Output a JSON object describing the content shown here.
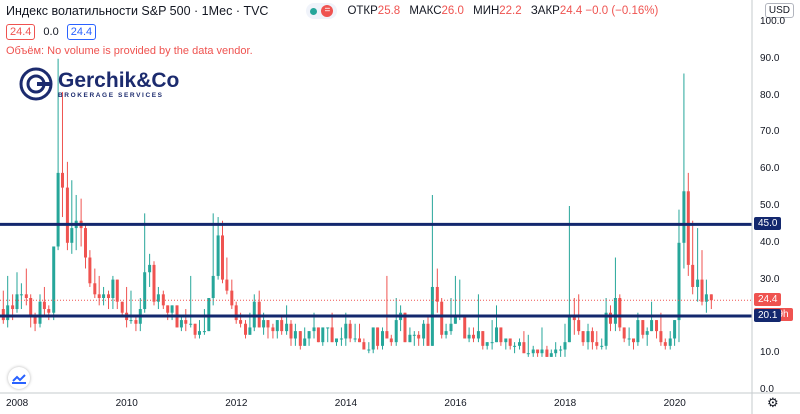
{
  "header": {
    "symbol_title": "Индекс волатильности S&P 500 · 1Мес · TVC",
    "ohlc": [
      {
        "key": "ОТКР",
        "value": "25.8"
      },
      {
        "key": "МАКС",
        "value": "26.0"
      },
      {
        "key": "МИН",
        "value": "22.2"
      },
      {
        "key": "ЗАКР",
        "value": "24.4 −0.0 (−0.16%)"
      }
    ],
    "badge_eq": "="
  },
  "legend_row": {
    "sell": "24.4",
    "spread": "0.0",
    "buy": "24.4"
  },
  "message": {
    "prefix": "Объём:",
    "text": "No volume is provided by the data vendor."
  },
  "logo": {
    "name": "Gerchik&Co",
    "subtitle": "BROKERAGE SERVICES"
  },
  "currency": "USD",
  "price_tags": {
    "last": "24.4",
    "countdown": "27d 9h",
    "level_45": "45.0",
    "level_20": "20.1"
  },
  "colors": {
    "up": "#26a69a",
    "down": "#ef5350",
    "level_line": "#13286e",
    "last_price": "#ef5350"
  },
  "chart_data": {
    "type": "candlestick",
    "y_axis_labels": [
      "0.0",
      "10.0",
      "20.0",
      "30.0",
      "40.0",
      "50.0",
      "60.0",
      "70.0",
      "80.0",
      "90.0",
      "100.0"
    ],
    "x_axis_labels": [
      "2008",
      "2010",
      "2012",
      "2014",
      "2016",
      "2018",
      "2020"
    ],
    "ylim": [
      0,
      100
    ],
    "horizontal_levels": [
      45.0,
      20.1
    ],
    "last_price": 24.4,
    "candles": [
      {
        "t": 2007.5,
        "o": 20,
        "h": 31,
        "l": 15,
        "c": 24
      },
      {
        "t": 2007.58,
        "o": 24,
        "h": 33,
        "l": 16,
        "c": 18
      },
      {
        "t": 2007.67,
        "o": 18,
        "h": 24,
        "l": 16,
        "c": 22
      },
      {
        "t": 2007.75,
        "o": 22,
        "h": 27,
        "l": 18,
        "c": 19
      },
      {
        "t": 2007.83,
        "o": 19,
        "h": 31,
        "l": 17,
        "c": 23
      },
      {
        "t": 2007.92,
        "o": 23,
        "h": 26,
        "l": 19,
        "c": 22
      },
      {
        "t": 2008.0,
        "o": 22,
        "h": 32,
        "l": 21,
        "c": 26
      },
      {
        "t": 2008.08,
        "o": 26,
        "h": 29,
        "l": 22,
        "c": 26
      },
      {
        "t": 2008.17,
        "o": 26,
        "h": 33,
        "l": 23,
        "c": 25
      },
      {
        "t": 2008.25,
        "o": 25,
        "h": 26,
        "l": 17,
        "c": 20
      },
      {
        "t": 2008.33,
        "o": 20,
        "h": 21,
        "l": 16,
        "c": 18
      },
      {
        "t": 2008.42,
        "o": 18,
        "h": 26,
        "l": 17,
        "c": 24
      },
      {
        "t": 2008.5,
        "o": 24,
        "h": 28,
        "l": 20,
        "c": 22
      },
      {
        "t": 2008.58,
        "o": 22,
        "h": 23,
        "l": 19,
        "c": 21
      },
      {
        "t": 2008.67,
        "o": 21,
        "h": 39,
        "l": 19,
        "c": 39
      },
      {
        "t": 2008.75,
        "o": 39,
        "h": 90,
        "l": 38,
        "c": 59
      },
      {
        "t": 2008.83,
        "o": 59,
        "h": 81,
        "l": 47,
        "c": 55
      },
      {
        "t": 2008.92,
        "o": 55,
        "h": 62,
        "l": 38,
        "c": 40
      },
      {
        "t": 2009.0,
        "o": 40,
        "h": 57,
        "l": 37,
        "c": 44
      },
      {
        "t": 2009.08,
        "o": 44,
        "h": 53,
        "l": 38,
        "c": 46
      },
      {
        "t": 2009.17,
        "o": 46,
        "h": 52,
        "l": 39,
        "c": 44
      },
      {
        "t": 2009.25,
        "o": 44,
        "h": 45,
        "l": 33,
        "c": 36
      },
      {
        "t": 2009.33,
        "o": 36,
        "h": 38,
        "l": 28,
        "c": 29
      },
      {
        "t": 2009.42,
        "o": 29,
        "h": 33,
        "l": 25,
        "c": 26
      },
      {
        "t": 2009.5,
        "o": 26,
        "h": 31,
        "l": 23,
        "c": 25
      },
      {
        "t": 2009.58,
        "o": 25,
        "h": 28,
        "l": 23,
        "c": 26
      },
      {
        "t": 2009.67,
        "o": 26,
        "h": 27,
        "l": 22,
        "c": 25
      },
      {
        "t": 2009.75,
        "o": 25,
        "h": 31,
        "l": 22,
        "c": 30
      },
      {
        "t": 2009.83,
        "o": 30,
        "h": 30,
        "l": 22,
        "c": 24
      },
      {
        "t": 2009.92,
        "o": 24,
        "h": 24,
        "l": 20,
        "c": 21
      },
      {
        "t": 2010.0,
        "o": 21,
        "h": 28,
        "l": 17,
        "c": 19
      },
      {
        "t": 2010.08,
        "o": 19,
        "h": 27,
        "l": 18,
        "c": 19
      },
      {
        "t": 2010.17,
        "o": 19,
        "h": 20,
        "l": 16,
        "c": 18
      },
      {
        "t": 2010.25,
        "o": 18,
        "h": 25,
        "l": 16,
        "c": 22
      },
      {
        "t": 2010.33,
        "o": 22,
        "h": 48,
        "l": 21,
        "c": 32
      },
      {
        "t": 2010.42,
        "o": 32,
        "h": 37,
        "l": 28,
        "c": 34
      },
      {
        "t": 2010.5,
        "o": 34,
        "h": 35,
        "l": 23,
        "c": 24
      },
      {
        "t": 2010.58,
        "o": 24,
        "h": 28,
        "l": 22,
        "c": 26
      },
      {
        "t": 2010.67,
        "o": 26,
        "h": 27,
        "l": 22,
        "c": 23
      },
      {
        "t": 2010.75,
        "o": 23,
        "h": 23,
        "l": 19,
        "c": 21
      },
      {
        "t": 2010.83,
        "o": 21,
        "h": 23,
        "l": 19,
        "c": 23
      },
      {
        "t": 2010.92,
        "o": 23,
        "h": 23,
        "l": 17,
        "c": 17
      },
      {
        "t": 2011.0,
        "o": 17,
        "h": 20,
        "l": 16,
        "c": 19
      },
      {
        "t": 2011.08,
        "o": 19,
        "h": 22,
        "l": 16,
        "c": 18
      },
      {
        "t": 2011.17,
        "o": 18,
        "h": 31,
        "l": 17,
        "c": 18
      },
      {
        "t": 2011.25,
        "o": 18,
        "h": 18,
        "l": 14,
        "c": 15
      },
      {
        "t": 2011.33,
        "o": 15,
        "h": 19,
        "l": 14,
        "c": 16
      },
      {
        "t": 2011.42,
        "o": 16,
        "h": 22,
        "l": 15,
        "c": 16
      },
      {
        "t": 2011.5,
        "o": 16,
        "h": 25,
        "l": 16,
        "c": 25
      },
      {
        "t": 2011.58,
        "o": 25,
        "h": 48,
        "l": 23,
        "c": 31
      },
      {
        "t": 2011.67,
        "o": 31,
        "h": 47,
        "l": 30,
        "c": 42
      },
      {
        "t": 2011.75,
        "o": 42,
        "h": 46,
        "l": 29,
        "c": 30
      },
      {
        "t": 2011.83,
        "o": 30,
        "h": 36,
        "l": 26,
        "c": 27
      },
      {
        "t": 2011.92,
        "o": 27,
        "h": 30,
        "l": 22,
        "c": 23
      },
      {
        "t": 2012.0,
        "o": 23,
        "h": 24,
        "l": 18,
        "c": 19
      },
      {
        "t": 2012.08,
        "o": 19,
        "h": 21,
        "l": 17,
        "c": 18
      },
      {
        "t": 2012.17,
        "o": 18,
        "h": 19,
        "l": 14,
        "c": 15
      },
      {
        "t": 2012.25,
        "o": 15,
        "h": 21,
        "l": 15,
        "c": 17
      },
      {
        "t": 2012.33,
        "o": 17,
        "h": 26,
        "l": 16,
        "c": 24
      },
      {
        "t": 2012.42,
        "o": 24,
        "h": 27,
        "l": 17,
        "c": 17
      },
      {
        "t": 2012.5,
        "o": 17,
        "h": 21,
        "l": 15,
        "c": 19
      },
      {
        "t": 2012.58,
        "o": 19,
        "h": 19,
        "l": 14,
        "c": 17
      },
      {
        "t": 2012.67,
        "o": 17,
        "h": 18,
        "l": 14,
        "c": 16
      },
      {
        "t": 2012.75,
        "o": 16,
        "h": 19,
        "l": 14,
        "c": 19
      },
      {
        "t": 2012.83,
        "o": 19,
        "h": 20,
        "l": 15,
        "c": 16
      },
      {
        "t": 2012.92,
        "o": 16,
        "h": 23,
        "l": 15,
        "c": 18
      },
      {
        "t": 2013.0,
        "o": 18,
        "h": 19,
        "l": 12,
        "c": 14
      },
      {
        "t": 2013.08,
        "o": 14,
        "h": 18,
        "l": 12,
        "c": 16
      },
      {
        "t": 2013.17,
        "o": 16,
        "h": 16,
        "l": 11,
        "c": 12
      },
      {
        "t": 2013.25,
        "o": 12,
        "h": 17,
        "l": 12,
        "c": 14
      },
      {
        "t": 2013.33,
        "o": 14,
        "h": 16,
        "l": 12,
        "c": 16
      },
      {
        "t": 2013.42,
        "o": 16,
        "h": 21,
        "l": 14,
        "c": 17
      },
      {
        "t": 2013.5,
        "o": 17,
        "h": 17,
        "l": 13,
        "c": 13
      },
      {
        "t": 2013.58,
        "o": 13,
        "h": 17,
        "l": 12,
        "c": 17
      },
      {
        "t": 2013.67,
        "o": 17,
        "h": 17,
        "l": 13,
        "c": 17
      },
      {
        "t": 2013.75,
        "o": 17,
        "h": 21,
        "l": 13,
        "c": 13
      },
      {
        "t": 2013.83,
        "o": 13,
        "h": 14,
        "l": 12,
        "c": 14
      },
      {
        "t": 2013.92,
        "o": 14,
        "h": 17,
        "l": 12,
        "c": 14
      },
      {
        "t": 2014.0,
        "o": 14,
        "h": 21,
        "l": 12,
        "c": 18
      },
      {
        "t": 2014.08,
        "o": 18,
        "h": 19,
        "l": 13,
        "c": 14
      },
      {
        "t": 2014.17,
        "o": 14,
        "h": 18,
        "l": 13,
        "c": 14
      },
      {
        "t": 2014.25,
        "o": 14,
        "h": 18,
        "l": 13,
        "c": 13
      },
      {
        "t": 2014.33,
        "o": 13,
        "h": 14,
        "l": 11,
        "c": 11
      },
      {
        "t": 2014.42,
        "o": 11,
        "h": 13,
        "l": 10,
        "c": 11
      },
      {
        "t": 2014.5,
        "o": 11,
        "h": 17,
        "l": 10,
        "c": 17
      },
      {
        "t": 2014.58,
        "o": 17,
        "h": 17,
        "l": 11,
        "c": 12
      },
      {
        "t": 2014.67,
        "o": 12,
        "h": 17,
        "l": 11,
        "c": 16
      },
      {
        "t": 2014.75,
        "o": 16,
        "h": 31,
        "l": 15,
        "c": 14
      },
      {
        "t": 2014.83,
        "o": 14,
        "h": 15,
        "l": 12,
        "c": 13
      },
      {
        "t": 2014.92,
        "o": 13,
        "h": 25,
        "l": 12,
        "c": 19
      },
      {
        "t": 2015.0,
        "o": 19,
        "h": 23,
        "l": 16,
        "c": 21
      },
      {
        "t": 2015.08,
        "o": 21,
        "h": 21,
        "l": 13,
        "c": 13
      },
      {
        "t": 2015.17,
        "o": 13,
        "h": 17,
        "l": 13,
        "c": 15
      },
      {
        "t": 2015.25,
        "o": 15,
        "h": 16,
        "l": 12,
        "c": 15
      },
      {
        "t": 2015.33,
        "o": 15,
        "h": 16,
        "l": 12,
        "c": 14
      },
      {
        "t": 2015.42,
        "o": 14,
        "h": 19,
        "l": 12,
        "c": 18
      },
      {
        "t": 2015.5,
        "o": 18,
        "h": 20,
        "l": 12,
        "c": 12
      },
      {
        "t": 2015.58,
        "o": 12,
        "h": 53,
        "l": 12,
        "c": 28
      },
      {
        "t": 2015.67,
        "o": 28,
        "h": 33,
        "l": 21,
        "c": 24
      },
      {
        "t": 2015.75,
        "o": 24,
        "h": 25,
        "l": 14,
        "c": 15
      },
      {
        "t": 2015.83,
        "o": 15,
        "h": 18,
        "l": 14,
        "c": 16
      },
      {
        "t": 2015.92,
        "o": 16,
        "h": 25,
        "l": 15,
        "c": 18
      },
      {
        "t": 2016.0,
        "o": 18,
        "h": 31,
        "l": 18,
        "c": 20
      },
      {
        "t": 2016.08,
        "o": 20,
        "h": 30,
        "l": 19,
        "c": 20
      },
      {
        "t": 2016.17,
        "o": 20,
        "h": 20,
        "l": 14,
        "c": 14
      },
      {
        "t": 2016.25,
        "o": 14,
        "h": 17,
        "l": 13,
        "c": 15
      },
      {
        "t": 2016.33,
        "o": 15,
        "h": 17,
        "l": 13,
        "c": 14
      },
      {
        "t": 2016.42,
        "o": 14,
        "h": 26,
        "l": 13,
        "c": 16
      },
      {
        "t": 2016.5,
        "o": 16,
        "h": 16,
        "l": 11,
        "c": 12
      },
      {
        "t": 2016.58,
        "o": 12,
        "h": 13,
        "l": 11,
        "c": 13
      },
      {
        "t": 2016.67,
        "o": 13,
        "h": 19,
        "l": 11,
        "c": 13
      },
      {
        "t": 2016.75,
        "o": 13,
        "h": 23,
        "l": 13,
        "c": 17
      },
      {
        "t": 2016.83,
        "o": 17,
        "h": 17,
        "l": 12,
        "c": 13
      },
      {
        "t": 2016.92,
        "o": 13,
        "h": 14,
        "l": 11,
        "c": 14
      },
      {
        "t": 2017.0,
        "o": 14,
        "h": 14,
        "l": 11,
        "c": 12
      },
      {
        "t": 2017.08,
        "o": 12,
        "h": 13,
        "l": 10,
        "c": 12
      },
      {
        "t": 2017.17,
        "o": 12,
        "h": 14,
        "l": 11,
        "c": 13
      },
      {
        "t": 2017.25,
        "o": 13,
        "h": 16,
        "l": 10,
        "c": 10
      },
      {
        "t": 2017.33,
        "o": 10,
        "h": 15,
        "l": 9,
        "c": 10
      },
      {
        "t": 2017.42,
        "o": 10,
        "h": 12,
        "l": 9,
        "c": 11
      },
      {
        "t": 2017.5,
        "o": 11,
        "h": 11,
        "l": 9,
        "c": 10
      },
      {
        "t": 2017.58,
        "o": 10,
        "h": 17,
        "l": 9,
        "c": 11
      },
      {
        "t": 2017.67,
        "o": 11,
        "h": 12,
        "l": 9,
        "c": 9
      },
      {
        "t": 2017.75,
        "o": 9,
        "h": 11,
        "l": 9,
        "c": 10
      },
      {
        "t": 2017.83,
        "o": 10,
        "h": 13,
        "l": 9,
        "c": 11
      },
      {
        "t": 2017.92,
        "o": 11,
        "h": 12,
        "l": 9,
        "c": 11
      },
      {
        "t": 2018.0,
        "o": 11,
        "h": 18,
        "l": 9,
        "c": 13
      },
      {
        "t": 2018.08,
        "o": 13,
        "h": 50,
        "l": 13,
        "c": 20
      },
      {
        "t": 2018.17,
        "o": 20,
        "h": 25,
        "l": 15,
        "c": 19
      },
      {
        "t": 2018.25,
        "o": 19,
        "h": 26,
        "l": 15,
        "c": 16
      },
      {
        "t": 2018.33,
        "o": 16,
        "h": 16,
        "l": 12,
        "c": 13
      },
      {
        "t": 2018.42,
        "o": 13,
        "h": 18,
        "l": 11,
        "c": 16
      },
      {
        "t": 2018.5,
        "o": 16,
        "h": 17,
        "l": 11,
        "c": 13
      },
      {
        "t": 2018.58,
        "o": 13,
        "h": 16,
        "l": 11,
        "c": 12
      },
      {
        "t": 2018.67,
        "o": 12,
        "h": 14,
        "l": 11,
        "c": 12
      },
      {
        "t": 2018.75,
        "o": 12,
        "h": 25,
        "l": 11,
        "c": 21
      },
      {
        "t": 2018.83,
        "o": 21,
        "h": 23,
        "l": 16,
        "c": 18
      },
      {
        "t": 2018.92,
        "o": 18,
        "h": 36,
        "l": 16,
        "c": 25
      },
      {
        "t": 2019.0,
        "o": 25,
        "h": 26,
        "l": 16,
        "c": 17
      },
      {
        "t": 2019.08,
        "o": 17,
        "h": 17,
        "l": 13,
        "c": 14
      },
      {
        "t": 2019.17,
        "o": 14,
        "h": 17,
        "l": 12,
        "c": 14
      },
      {
        "t": 2019.25,
        "o": 14,
        "h": 14,
        "l": 11,
        "c": 13
      },
      {
        "t": 2019.33,
        "o": 13,
        "h": 21,
        "l": 12,
        "c": 19
      },
      {
        "t": 2019.42,
        "o": 19,
        "h": 19,
        "l": 14,
        "c": 15
      },
      {
        "t": 2019.5,
        "o": 15,
        "h": 17,
        "l": 12,
        "c": 16
      },
      {
        "t": 2019.58,
        "o": 16,
        "h": 24,
        "l": 16,
        "c": 19
      },
      {
        "t": 2019.67,
        "o": 19,
        "h": 19,
        "l": 14,
        "c": 16
      },
      {
        "t": 2019.75,
        "o": 16,
        "h": 21,
        "l": 12,
        "c": 13
      },
      {
        "t": 2019.83,
        "o": 13,
        "h": 14,
        "l": 11,
        "c": 12
      },
      {
        "t": 2019.92,
        "o": 12,
        "h": 16,
        "l": 11,
        "c": 14
      },
      {
        "t": 2020.0,
        "o": 14,
        "h": 19,
        "l": 12,
        "c": 19
      },
      {
        "t": 2020.08,
        "o": 19,
        "h": 49,
        "l": 13,
        "c": 40
      },
      {
        "t": 2020.17,
        "o": 40,
        "h": 86,
        "l": 33,
        "c": 54
      },
      {
        "t": 2020.25,
        "o": 54,
        "h": 59,
        "l": 31,
        "c": 34
      },
      {
        "t": 2020.33,
        "o": 34,
        "h": 46,
        "l": 26,
        "c": 28
      },
      {
        "t": 2020.42,
        "o": 28,
        "h": 44,
        "l": 24,
        "c": 30
      },
      {
        "t": 2020.5,
        "o": 30,
        "h": 38,
        "l": 23,
        "c": 24
      },
      {
        "t": 2020.58,
        "o": 24,
        "h": 30,
        "l": 21,
        "c": 26
      },
      {
        "t": 2020.67,
        "o": 26,
        "h": 26,
        "l": 22,
        "c": 24.4
      }
    ]
  }
}
